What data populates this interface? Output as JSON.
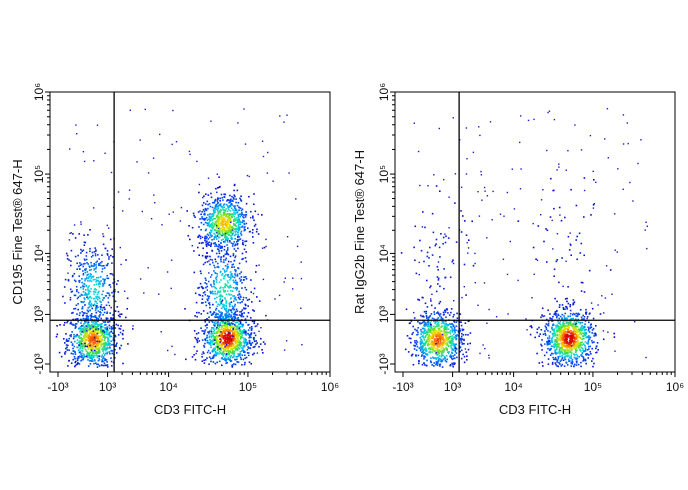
{
  "chart_data": [
    {
      "type": "scatter",
      "subtype": "flow-cytometry-pseudocolor",
      "xlabel": "CD3 FITC-H",
      "ylabel": "CD195 Fine Test® 647-H",
      "x_scale": "biexponential",
      "y_scale": "biexponential",
      "x_ticks": [
        "-10³",
        "10³",
        "10⁴",
        "10⁵",
        "10⁶"
      ],
      "y_ticks": [
        "-10³",
        "10³",
        "10⁴",
        "10⁵",
        "10⁶"
      ],
      "xlim": [
        -1500,
        1000000
      ],
      "ylim": [
        -1500,
        1000000
      ],
      "gate": {
        "x": 1400,
        "y": 700
      },
      "populations": [
        {
          "x": 300,
          "y": 0,
          "density": 0.9
        },
        {
          "x": 300,
          "y": 3000,
          "density": 0.45
        },
        {
          "x": 55000,
          "y": 50,
          "density": 1.0
        },
        {
          "x": 50000,
          "y": 3000,
          "density": 0.5
        },
        {
          "x": 50000,
          "y": 25000,
          "density": 0.8
        }
      ]
    },
    {
      "type": "scatter",
      "subtype": "flow-cytometry-pseudocolor",
      "xlabel": "CD3 FITC-H",
      "ylabel": "Rat IgG2b Fine Test® 647-H",
      "x_scale": "biexponential",
      "y_scale": "biexponential",
      "x_ticks": [
        "-10³",
        "10³",
        "10⁴",
        "10⁵",
        "10⁶"
      ],
      "y_ticks": [
        "-10³",
        "10³",
        "10⁴",
        "10⁵",
        "10⁶"
      ],
      "xlim": [
        -1500,
        1000000
      ],
      "ylim": [
        -1500,
        1000000
      ],
      "gate": {
        "x": 1400,
        "y": 700
      },
      "populations": [
        {
          "x": 300,
          "y": 0,
          "density": 0.9
        },
        {
          "x": 300,
          "y": 8000,
          "density": 0.08
        },
        {
          "x": 50000,
          "y": 50,
          "density": 1.0
        },
        {
          "x": 50000,
          "y": 8000,
          "density": 0.06
        }
      ]
    }
  ]
}
